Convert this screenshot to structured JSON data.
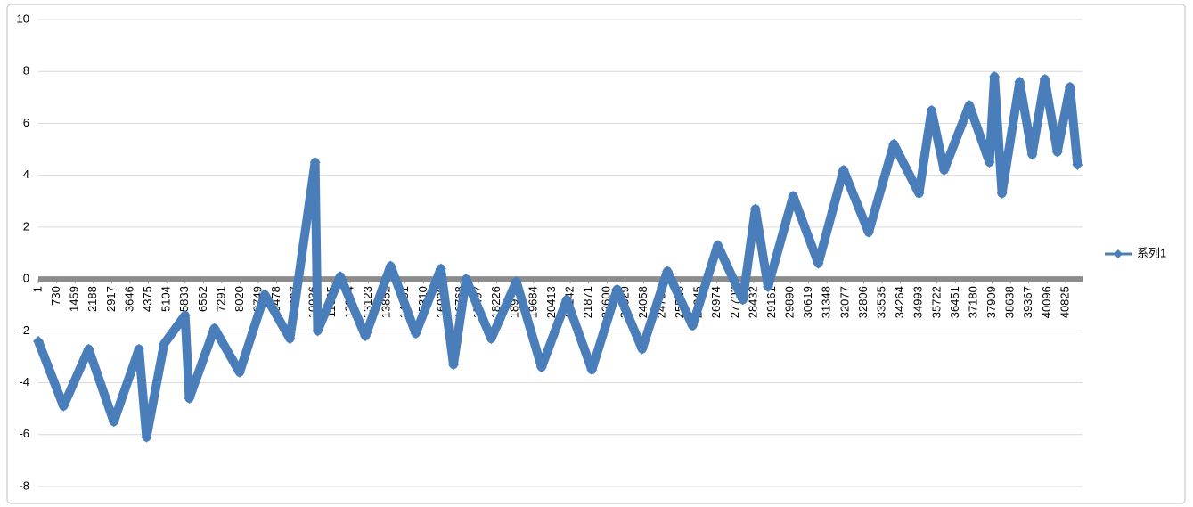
{
  "chart_data": {
    "type": "line",
    "x": [
      0,
      1000,
      2000,
      3000,
      4000,
      4300,
      5000,
      5833,
      6000,
      7000,
      8000,
      9000,
      10000,
      11000,
      11100,
      12000,
      13000,
      14000,
      15000,
      16000,
      16500,
      17000,
      18000,
      19000,
      20000,
      21000,
      22000,
      23000,
      24000,
      25000,
      26000,
      27000,
      28000,
      28500,
      29000,
      30000,
      31000,
      32000,
      33000,
      34000,
      35000,
      35500,
      36000,
      37000,
      37800,
      38000,
      38300,
      39000,
      39500,
      40000,
      40500,
      41000,
      41300
    ],
    "series": [
      {
        "name": "系列1",
        "color": "#4a7ebb",
        "values": [
          -2.4,
          -4.9,
          -2.7,
          -5.5,
          -2.7,
          -6.1,
          -2.5,
          -1.4,
          -4.6,
          -1.9,
          -3.6,
          -0.6,
          -2.3,
          4.5,
          -2.0,
          0.1,
          -2.2,
          0.5,
          -2.1,
          0.4,
          -3.3,
          0.0,
          -2.3,
          -0.1,
          -3.4,
          -0.8,
          -3.5,
          -0.4,
          -2.7,
          0.3,
          -1.8,
          1.3,
          -0.8,
          2.7,
          -0.3,
          3.2,
          0.6,
          4.2,
          1.8,
          5.2,
          3.3,
          6.5,
          4.2,
          6.7,
          4.5,
          7.8,
          3.3,
          7.6,
          4.8,
          7.7,
          4.9,
          7.4,
          4.4
        ]
      }
    ],
    "xlim": [
      0,
      41500
    ],
    "xticks": [
      1,
      730,
      1459,
      2188,
      2917,
      3646,
      4375,
      5104,
      5833,
      6562,
      7291,
      8020,
      8749,
      9478,
      10207,
      10936,
      11665,
      12394,
      13123,
      13852,
      14581,
      15310,
      16039,
      16768,
      17497,
      18226,
      18955,
      19684,
      20413,
      21142,
      21871,
      22600,
      23329,
      24058,
      24787,
      25516,
      26245,
      26974,
      27703,
      28432,
      29161,
      29890,
      30619,
      31348,
      32077,
      32806,
      33535,
      34264,
      34993,
      35722,
      36451,
      37180,
      37909,
      38638,
      39367,
      40096,
      40825
    ],
    "ylim": [
      -8,
      10
    ],
    "yticks": [
      -8,
      -6,
      -4,
      -2,
      0,
      2,
      4,
      6,
      8,
      10
    ],
    "grid": true,
    "legend": "right"
  }
}
